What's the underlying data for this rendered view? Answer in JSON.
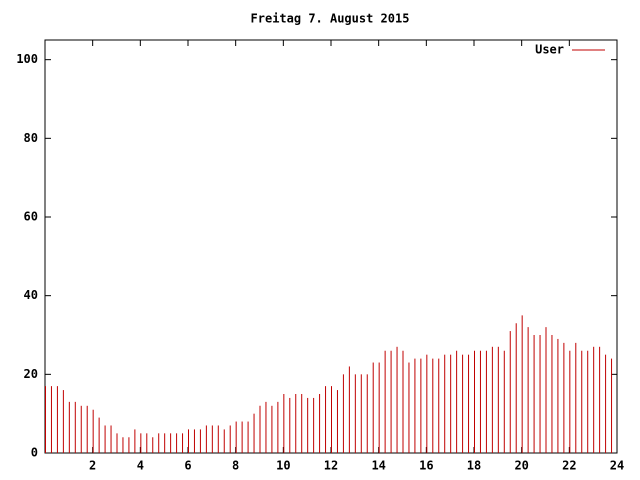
{
  "chart_data": {
    "type": "impulses",
    "title": "Freitag 7. August 2015",
    "x": [
      0,
      0.25,
      0.5,
      0.75,
      1,
      1.25,
      1.5,
      1.75,
      2,
      2.25,
      2.5,
      2.75,
      3,
      3.25,
      3.5,
      3.75,
      4,
      4.25,
      4.5,
      4.75,
      5,
      5.25,
      5.5,
      5.75,
      6,
      6.25,
      6.5,
      6.75,
      7,
      7.25,
      7.5,
      7.75,
      8,
      8.25,
      8.5,
      8.75,
      9,
      9.25,
      9.5,
      9.75,
      10,
      10.25,
      10.5,
      10.75,
      11,
      11.25,
      11.5,
      11.75,
      12,
      12.25,
      12.5,
      12.75,
      13,
      13.25,
      13.5,
      13.75,
      14,
      14.25,
      14.5,
      14.75,
      15,
      15.25,
      15.5,
      15.75,
      16,
      16.25,
      16.5,
      16.75,
      17,
      17.25,
      17.5,
      17.75,
      18,
      18.25,
      18.5,
      18.75,
      19,
      19.25,
      19.5,
      19.75,
      20,
      20.25,
      20.5,
      20.75,
      21,
      21.25,
      21.5,
      21.75,
      22,
      22.25,
      22.5,
      22.75,
      23,
      23.25,
      23.5,
      23.75
    ],
    "series": [
      {
        "name": "User",
        "color": "#c00000",
        "values": [
          17,
          17,
          17,
          16,
          13,
          13,
          12,
          12,
          11,
          9,
          7,
          7,
          5,
          4,
          4,
          6,
          5,
          5,
          4,
          5,
          5,
          5,
          5,
          5,
          6,
          6,
          6,
          7,
          7,
          7,
          6,
          7,
          8,
          8,
          8,
          10,
          12,
          13,
          12,
          13,
          15,
          14,
          15,
          15,
          14,
          14,
          15,
          17,
          17,
          16,
          20,
          22,
          20,
          20,
          20,
          23,
          23,
          26,
          26,
          27,
          26,
          23,
          24,
          24,
          25,
          24,
          24,
          25,
          25,
          26,
          25,
          25,
          26,
          26,
          26,
          27,
          27,
          26,
          31,
          33,
          35,
          32,
          30,
          30,
          32,
          30,
          29,
          28,
          26,
          28,
          26,
          26,
          27,
          27,
          25,
          24
        ]
      }
    ],
    "xlim": [
      0,
      24
    ],
    "ylim": [
      0,
      105
    ],
    "xticks": [
      2,
      4,
      6,
      8,
      10,
      12,
      14,
      16,
      18,
      20,
      22,
      24
    ],
    "yticks": [
      0,
      20,
      40,
      60,
      80,
      100
    ],
    "legend": "upper right"
  }
}
